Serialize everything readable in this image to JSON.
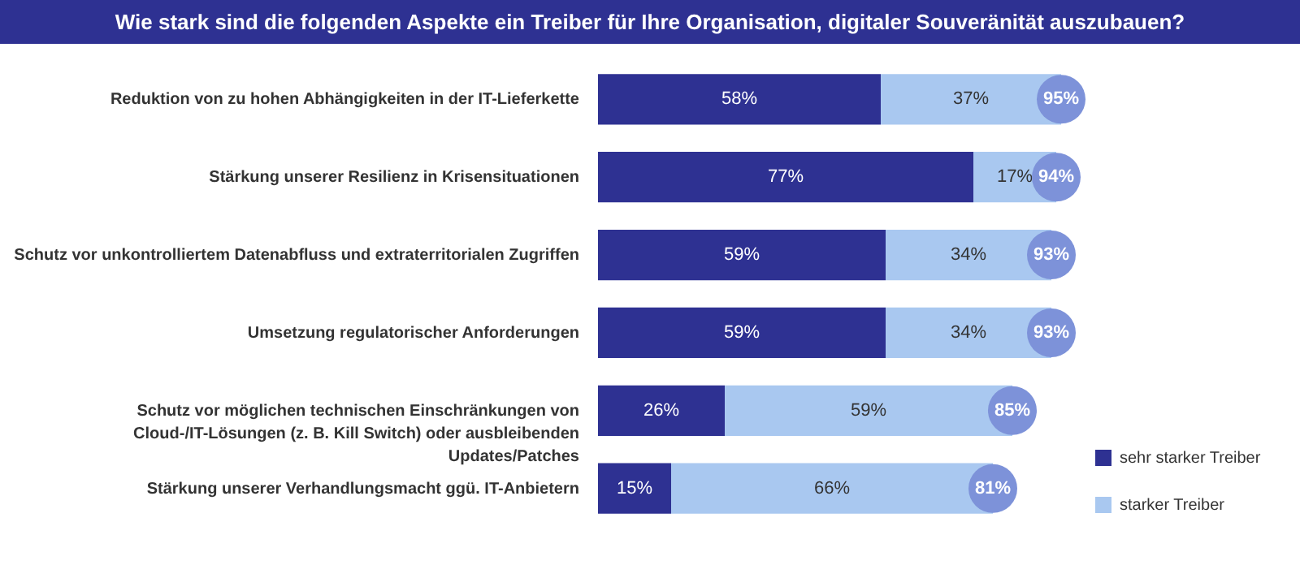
{
  "chart_data": {
    "type": "bar",
    "orientation": "horizontal",
    "stacked": true,
    "title": "Wie stark sind die folgenden Aspekte ein Treiber für Ihre Organisation, digitaler Souveränität auszubauen?",
    "categories": [
      "Reduktion von zu hohen Abhängigkeiten in der IT-Lieferkette",
      "Stärkung unserer Resilienz in Krisensituationen",
      "Schutz vor unkontrolliertem Datenabfluss und extraterritorialen Zugriffen",
      "Umsetzung regulatorischer Anforderungen",
      "Schutz vor möglichen technischen Einschränkungen von Cloud-/IT-Lösungen (z. B. Kill Switch) oder ausbleibenden Updates/Patches",
      "Stärkung unserer Verhandlungsmacht ggü. IT-Anbietern"
    ],
    "series": [
      {
        "name": "sehr starker Treiber",
        "color": "#2e3192",
        "values": [
          58,
          77,
          59,
          59,
          26,
          15
        ],
        "value_labels": [
          "58%",
          "77%",
          "59%",
          "59%",
          "26%",
          "15%"
        ]
      },
      {
        "name": "starker Treiber",
        "color": "#a9c8f0",
        "values": [
          37,
          17,
          34,
          34,
          59,
          66
        ],
        "value_labels": [
          "37%",
          "17%",
          "34%",
          "34%",
          "59%",
          "66%"
        ]
      }
    ],
    "totals": [
      "95%",
      "94%",
      "93%",
      "93%",
      "85%",
      "81%"
    ],
    "legend": "bottom right"
  }
}
